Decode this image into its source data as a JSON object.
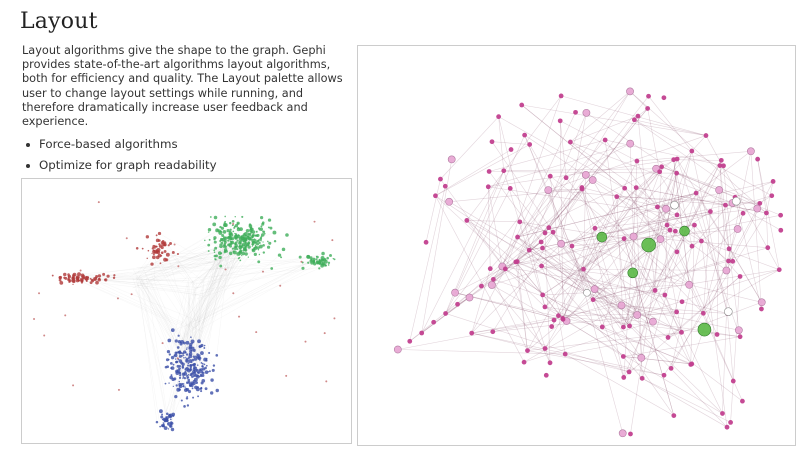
{
  "page": {
    "title": "Layout",
    "intro": "Layout algorithms give the shape to the graph. Gephi provides state-of-the-art algorithms layout algorithms, both for efficiency and quality. The Layout palette allows user to change layout settings while running, and therefore dramatically increase user feedback and experience.",
    "bullets": [
      "Force-based algorithms",
      "Optimize for graph readability"
    ]
  },
  "colors": {
    "text": "#333333",
    "title": "#222222",
    "cluster_green": "#3fae5a",
    "cluster_blue": "#3b4fa8",
    "cluster_red": "#b03a3a",
    "node_pink": "#c2408f",
    "node_light_pink": "#e8a8d4",
    "edge_mauve": "#7a3a5a",
    "node_green": "#5ab845"
  },
  "images": {
    "left_graph": {
      "icon": "graph-clusters-image"
    },
    "right_graph": {
      "icon": "graph-network-image"
    }
  }
}
